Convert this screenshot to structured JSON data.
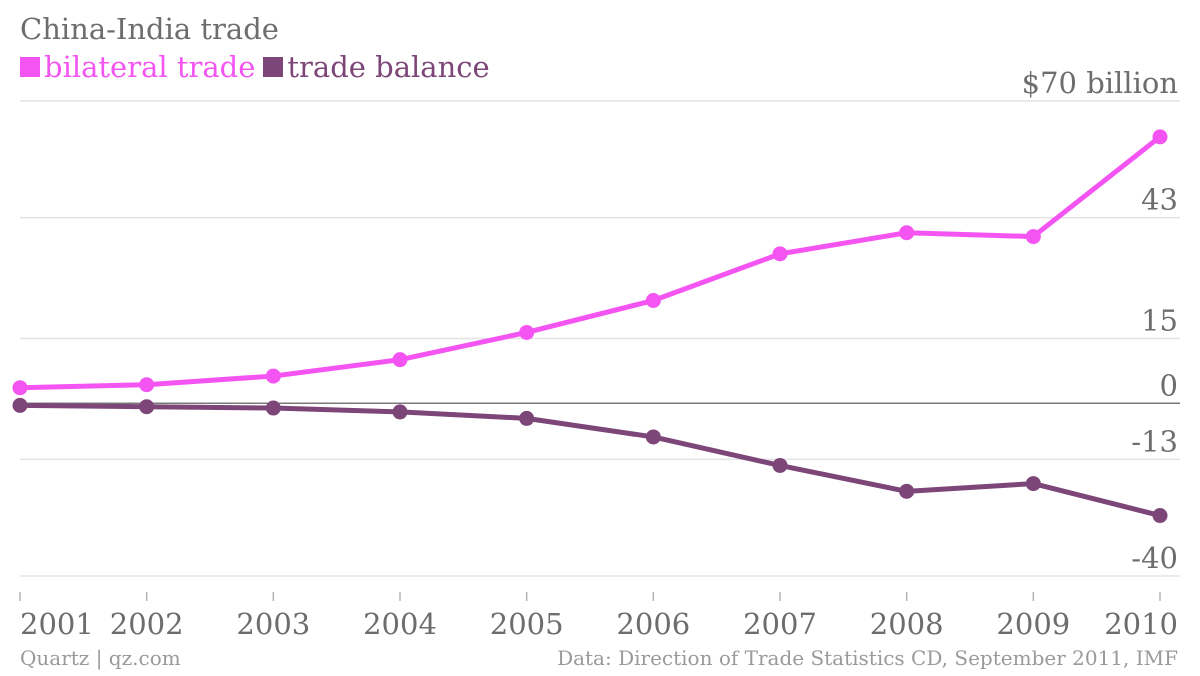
{
  "header": {
    "title": "China-India trade"
  },
  "footer": {
    "source_left": "Quartz | qz.com",
    "source_right": "Data: Direction of Trade Statistics CD, September 2011, IMF"
  },
  "colors": {
    "bilateral": "#f455f2",
    "balance": "#7d4678",
    "grid": "#e3e3e3",
    "zero": "#7a7a7a",
    "text": "#6d6d6d"
  },
  "chart_data": {
    "type": "line",
    "title": "China-India trade",
    "unit_label": "$70 billion",
    "x": [
      "2001",
      "2002",
      "2003",
      "2004",
      "2005",
      "2006",
      "2007",
      "2008",
      "2009",
      "2010"
    ],
    "series": [
      {
        "name": "bilateral trade",
        "values": [
          3.6,
          4.3,
          6.3,
          10.1,
          16.4,
          23.8,
          34.6,
          39.5,
          38.6,
          61.7
        ]
      },
      {
        "name": "trade balance",
        "values": [
          -0.5,
          -0.8,
          -1.1,
          -2.0,
          -3.5,
          -7.8,
          -14.4,
          -20.4,
          -18.6,
          -26.0
        ]
      }
    ],
    "yticks": [
      {
        "value": 70,
        "label": "$70 billion"
      },
      {
        "value": 43,
        "label": "43"
      },
      {
        "value": 15,
        "label": "15"
      },
      {
        "value": 0,
        "label": "0"
      },
      {
        "value": -13,
        "label": "-13"
      },
      {
        "value": -40,
        "label": "-40"
      }
    ],
    "ylim": [
      -40,
      70
    ],
    "grid": true,
    "legend": "top-left"
  }
}
